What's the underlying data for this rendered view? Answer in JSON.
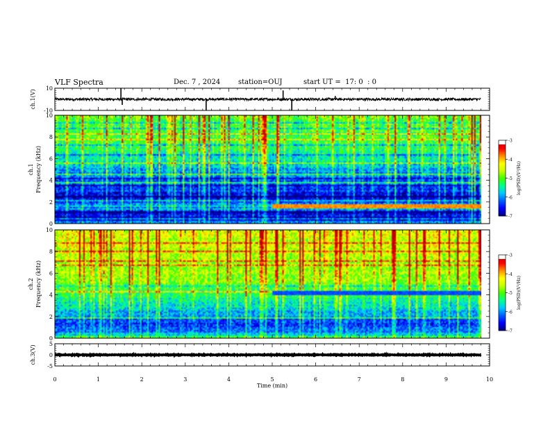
{
  "header": {
    "title": "VLF Spectra",
    "date": "Dec. 7 , 2024",
    "station": "station=OUJ",
    "start": "start UT =  17: 0  : 0"
  },
  "colors": {
    "colormap": [
      "#000080",
      "#0000ff",
      "#0060ff",
      "#00c8ff",
      "#00ff90",
      "#40ff00",
      "#c8ff00",
      "#ffff00",
      "#ff9000",
      "#ff0000",
      "#c00000"
    ],
    "cbar_top": "#ffffff",
    "trace": "#000000"
  },
  "chart_data": [
    {
      "type": "line",
      "ylabel": "ch.1(V)",
      "ylim": [
        -10,
        10
      ],
      "yticks": [
        "10",
        "-10"
      ],
      "xlim": [
        0,
        10
      ],
      "description": "waveform ch1",
      "baseline": 0,
      "noise_amplitude": 1.2,
      "spikes": [
        {
          "t": 1.52,
          "v": 10
        },
        {
          "t": 1.55,
          "v": -5
        },
        {
          "t": 3.48,
          "v": -10
        },
        {
          "t": 5.45,
          "v": -10
        },
        {
          "t": 5.25,
          "v": 8
        },
        {
          "t": 6.45,
          "v": 3
        }
      ]
    },
    {
      "type": "heatmap",
      "ylabel": "ch.1\nFrequency (kHz)",
      "ylabel_lines": [
        "ch.1",
        "Frequency (kHz)"
      ],
      "ylim": [
        0,
        10
      ],
      "yticks": [
        "0",
        "2",
        "4",
        "6",
        "8",
        "10"
      ],
      "xlim": [
        0,
        9.8
      ],
      "colorbar": {
        "label": "log(PSD)(V²/Hz)",
        "min": -7,
        "max": -3,
        "ticks": [
          "-3",
          "-4",
          "-5",
          "-6",
          "-7"
        ]
      },
      "profile": [
        {
          "f": 0.0,
          "v": -6.0
        },
        {
          "f": 0.5,
          "v": -6.2
        },
        {
          "f": 1.0,
          "v": -6.8
        },
        {
          "f": 1.5,
          "v": -5.5
        },
        {
          "f": 2.0,
          "v": -6.6
        },
        {
          "f": 2.5,
          "v": -6.8
        },
        {
          "f": 3.0,
          "v": -6.4
        },
        {
          "f": 4.0,
          "v": -6.2
        },
        {
          "f": 5.0,
          "v": -5.9
        },
        {
          "f": 6.0,
          "v": -5.6
        },
        {
          "f": 7.0,
          "v": -5.3
        },
        {
          "f": 8.0,
          "v": -5.1
        },
        {
          "f": 10.0,
          "v": -5.0
        }
      ],
      "band_after_min": 5.0,
      "band_freq": 1.6,
      "band_value": -3.8
    },
    {
      "type": "heatmap",
      "ylabel": "ch.2\nFrequency (kHz)",
      "ylabel_lines": [
        "ch.2",
        "Frequency (kHz)"
      ],
      "ylim": [
        0,
        10
      ],
      "yticks": [
        "0",
        "2",
        "4",
        "6",
        "8",
        "10"
      ],
      "xlim": [
        0,
        9.8
      ],
      "colorbar": {
        "label": "log(PSD)(V²/Hz)",
        "min": -7,
        "max": -3,
        "ticks": [
          "-3",
          "-4",
          "-5",
          "-6",
          "-7"
        ]
      },
      "profile": [
        {
          "f": 0.0,
          "v": -5.0
        },
        {
          "f": 0.5,
          "v": -6.0
        },
        {
          "f": 1.0,
          "v": -6.2
        },
        {
          "f": 1.5,
          "v": -6.4
        },
        {
          "f": 2.0,
          "v": -6.0
        },
        {
          "f": 3.0,
          "v": -5.6
        },
        {
          "f": 4.0,
          "v": -5.2
        },
        {
          "f": 5.0,
          "v": -4.9
        },
        {
          "f": 6.0,
          "v": -4.7
        },
        {
          "f": 7.0,
          "v": -4.6
        },
        {
          "f": 8.0,
          "v": -4.5
        },
        {
          "f": 10.0,
          "v": -4.4
        }
      ],
      "band_after_min": 5.0,
      "band_freq": 4.2,
      "band_value": -6.3
    },
    {
      "type": "line",
      "ylabel": "ch.3(V)",
      "ylim": [
        -5,
        5
      ],
      "yticks": [
        "5",
        "0",
        "-5"
      ],
      "xlim": [
        0,
        10
      ],
      "description": "flat ch3",
      "baseline": 0,
      "noise_amplitude": 0.15,
      "spikes": []
    }
  ],
  "xaxis": {
    "label": "Time (min)",
    "ticks": [
      "0",
      "1",
      "2",
      "3",
      "4",
      "5",
      "6",
      "7",
      "8",
      "9",
      "10"
    ]
  }
}
